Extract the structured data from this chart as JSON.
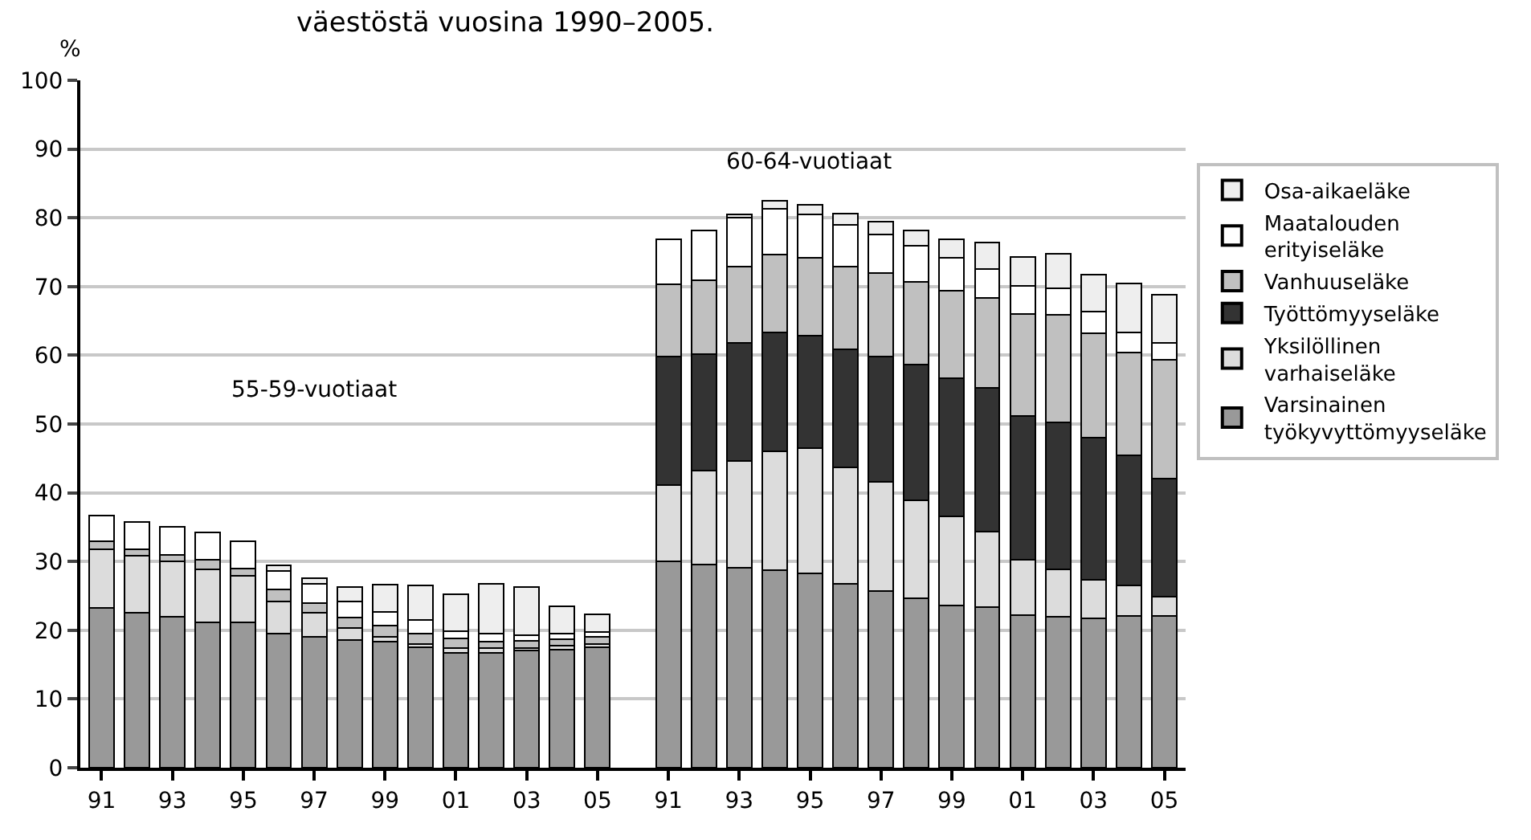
{
  "chart_data": {
    "type": "bar",
    "stacked": true,
    "title": "väestöstä vuosina 1990–2005.",
    "ylabel": "%",
    "categories": [
      "91",
      null,
      "93",
      null,
      "95",
      null,
      "97",
      null,
      "99",
      null,
      "01",
      null,
      "03",
      null,
      "05",
      null,
      "91",
      null,
      "93",
      null,
      "95",
      null,
      "97",
      null,
      "99",
      null,
      "01",
      null,
      "03",
      null,
      "05"
    ],
    "ylim": [
      0,
      100
    ],
    "yticks": [
      0,
      10,
      20,
      30,
      40,
      50,
      60,
      70,
      80,
      90,
      100
    ],
    "grid": "y",
    "legend": "right",
    "annotations": [
      "55-59-vuotiaat",
      "60-64-vuotiaat"
    ],
    "series": [
      {
        "name": "Varsinainen työkyvyttömyyseläke",
        "color": "#999999",
        "values": [
          23.2,
          22.6,
          22.0,
          21.2,
          21.1,
          19.5,
          19.1,
          18.6,
          18.3,
          17.5,
          16.7,
          16.7,
          17.0,
          17.2,
          17.5,
          null,
          30.0,
          29.6,
          29.1,
          28.7,
          28.3,
          26.8,
          25.7,
          24.6,
          23.6,
          23.4,
          22.2,
          22.0,
          21.7,
          22.1,
          22.1
        ]
      },
      {
        "name": "Yksilöllinen varhaiseläke",
        "color": "#dcdcdc",
        "values": [
          8.6,
          8.2,
          8.0,
          7.7,
          6.8,
          4.7,
          3.4,
          1.7,
          0.7,
          0.5,
          0.7,
          0.7,
          0.4,
          0.6,
          0.5,
          null,
          11.1,
          13.6,
          15.5,
          17.3,
          18.2,
          16.9,
          15.9,
          14.3,
          13.0,
          10.9,
          8.0,
          6.8,
          5.6,
          4.4,
          2.8
        ]
      },
      {
        "name": "Työttömyyseläke",
        "color": "#333333",
        "values": [
          null,
          null,
          null,
          null,
          null,
          null,
          null,
          null,
          null,
          null,
          null,
          null,
          null,
          null,
          null,
          null,
          18.7,
          17.0,
          17.2,
          17.3,
          16.3,
          17.2,
          18.2,
          19.8,
          20.1,
          20.9,
          21.0,
          21.4,
          20.7,
          19.0,
          17.1
        ]
      },
      {
        "name": "Vanhuuseläke",
        "color": "#c0c0c0",
        "values": [
          1.2,
          1.0,
          1.0,
          1.4,
          1.1,
          1.7,
          1.5,
          1.6,
          1.7,
          1.5,
          1.4,
          1.0,
          1.1,
          0.9,
          1.0,
          null,
          10.5,
          10.7,
          11.1,
          11.4,
          11.4,
          12.0,
          12.2,
          12.0,
          12.7,
          13.2,
          14.8,
          15.7,
          15.2,
          14.9,
          17.3
        ]
      },
      {
        "name": "Maatalouden erityiseläke",
        "color": "#ffffff",
        "values": [
          3.7,
          4.0,
          4.1,
          3.9,
          4.0,
          2.7,
          2.7,
          2.3,
          2.0,
          2.0,
          1.1,
          1.1,
          0.8,
          0.8,
          0.7,
          null,
          6.6,
          7.2,
          7.1,
          6.6,
          6.3,
          6.1,
          5.6,
          5.2,
          4.8,
          4.2,
          4.1,
          3.8,
          3.1,
          2.9,
          2.5
        ]
      },
      {
        "name": "Osa-aikaeläke",
        "color": "#eeeeee",
        "values": [
          null,
          null,
          null,
          null,
          null,
          0.8,
          0.9,
          2.1,
          3.9,
          5.0,
          5.3,
          7.2,
          7.0,
          4.0,
          2.6,
          null,
          null,
          null,
          0.5,
          1.2,
          1.4,
          1.6,
          1.8,
          2.2,
          2.7,
          3.8,
          4.2,
          5.1,
          5.4,
          7.2,
          7.0
        ]
      }
    ]
  }
}
